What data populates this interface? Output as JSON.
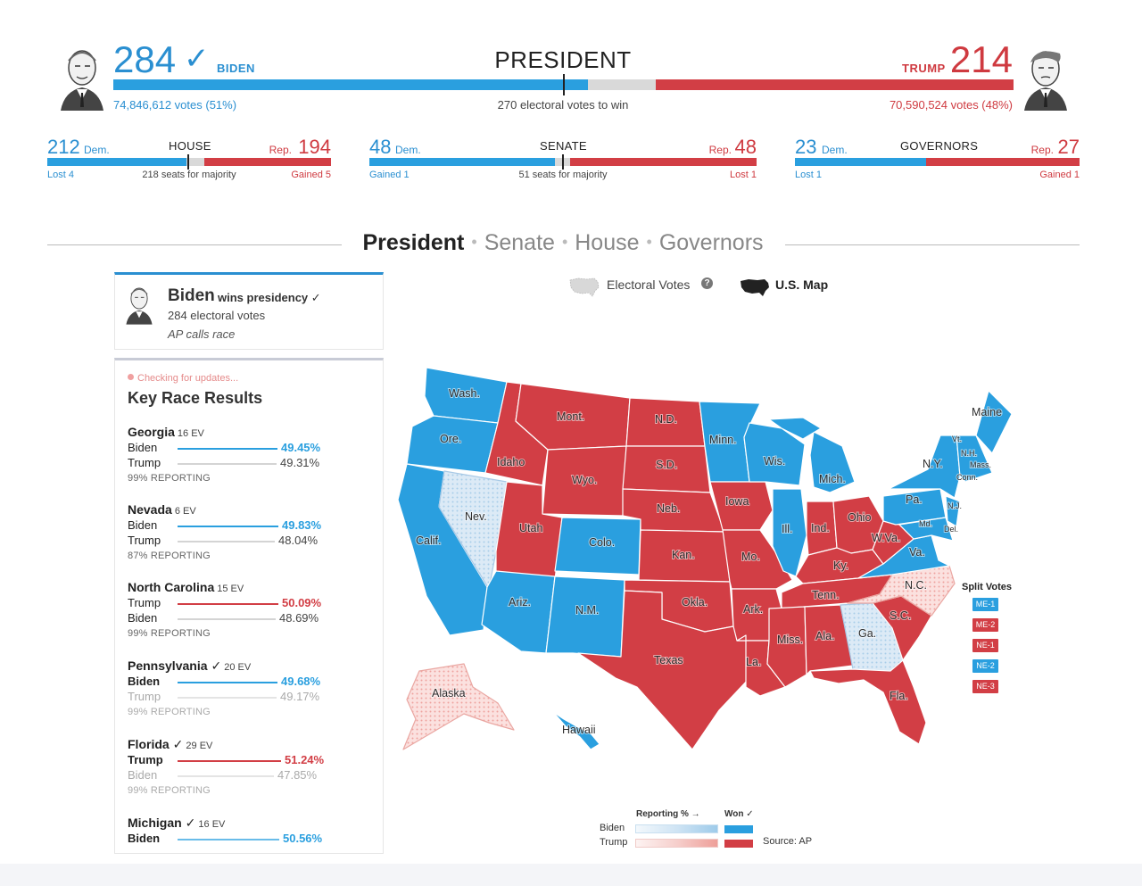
{
  "president": {
    "title": "PRESIDENT",
    "biden": {
      "ev": "284",
      "name": "BIDEN",
      "check": "✓",
      "votes": "74,846,612 votes (51%)"
    },
    "trump": {
      "ev": "214",
      "name": "TRUMP",
      "votes": "70,590,524 votes (48%)"
    },
    "to_win": "270 electoral votes to win"
  },
  "races": [
    {
      "title": "HOUSE",
      "dem": "212",
      "dem_label": "Dem.",
      "rep": "194",
      "rep_label": "Rep.",
      "dem_change": "Lost 4",
      "middle": "218 seats for majority",
      "rep_change": "Gained 5"
    },
    {
      "title": "SENATE",
      "dem": "48",
      "dem_label": "Dem.",
      "rep": "48",
      "rep_label": "Rep.",
      "dem_change": "Gained 1",
      "middle": "51 seats for majority",
      "rep_change": "Lost 1"
    },
    {
      "title": "GOVERNORS",
      "dem": "23",
      "dem_label": "Dem.",
      "rep": "27",
      "rep_label": "Rep.",
      "dem_change": "Lost 1",
      "middle": "",
      "rep_change": "Gained 1"
    }
  ],
  "nav": {
    "items": [
      "President",
      "Senate",
      "House",
      "Governors"
    ],
    "separator": "•",
    "active": "President"
  },
  "winner_card": {
    "name": "Biden",
    "wins": "wins presidency ✓",
    "ev": "284 electoral votes",
    "ap": "AP calls race"
  },
  "key_races": {
    "status": "Checking for updates...",
    "title": "Key Race Results",
    "states": [
      {
        "name": "Georgia",
        "check": "",
        "ev": "16 EV",
        "reporting": "99% REPORTING",
        "rows": [
          {
            "name": "Biden",
            "pct": "49.45%",
            "party": "dem",
            "win": true
          },
          {
            "name": "Trump",
            "pct": "49.31%",
            "party": "rep",
            "win": false
          }
        ]
      },
      {
        "name": "Nevada",
        "check": "",
        "ev": "6 EV",
        "reporting": "87% REPORTING",
        "rows": [
          {
            "name": "Biden",
            "pct": "49.83%",
            "party": "dem",
            "win": true
          },
          {
            "name": "Trump",
            "pct": "48.04%",
            "party": "rep",
            "win": false
          }
        ]
      },
      {
        "name": "North Carolina",
        "check": "",
        "ev": "15 EV",
        "reporting": "99% REPORTING",
        "rows": [
          {
            "name": "Trump",
            "pct": "50.09%",
            "party": "rep",
            "win": true
          },
          {
            "name": "Biden",
            "pct": "48.69%",
            "party": "dem",
            "win": false
          }
        ]
      },
      {
        "name": "Pennsylvania",
        "check": "✓",
        "ev": "20 EV",
        "reporting": "99% REPORTING",
        "rows": [
          {
            "name": "Biden",
            "pct": "49.68%",
            "party": "dem",
            "win": true
          },
          {
            "name": "Trump",
            "pct": "49.17%",
            "party": "rep",
            "win": false
          }
        ]
      },
      {
        "name": "Florida",
        "check": "✓",
        "ev": "29 EV",
        "reporting": "99% REPORTING",
        "rows": [
          {
            "name": "Trump",
            "pct": "51.24%",
            "party": "rep",
            "win": true
          },
          {
            "name": "Biden",
            "pct": "47.85%",
            "party": "dem",
            "win": false
          }
        ]
      },
      {
        "name": "Michigan",
        "check": "✓",
        "ev": "16 EV",
        "reporting": "",
        "rows": [
          {
            "name": "Biden",
            "pct": "50.56%",
            "party": "dem",
            "win": true
          }
        ]
      }
    ]
  },
  "map_toggle": {
    "ev_label": "Electoral Votes",
    "help": "?",
    "us_label": "U.S. Map",
    "ev_icon": "us-map-outline-icon",
    "us_icon": "us-map-filled-icon",
    "help_icon": "help-circle-icon"
  },
  "map": {
    "labels": {
      "wash": "Wash.",
      "ore": "Ore.",
      "calif": "Calif.",
      "nev": "Nev.",
      "idaho": "Idaho",
      "mont": "Mont.",
      "wyo": "Wyo.",
      "utah": "Utah",
      "colo": "Colo.",
      "ariz": "Ariz.",
      "nm": "N.M.",
      "nd": "N.D.",
      "sd": "S.D.",
      "neb": "Neb.",
      "kan": "Kan.",
      "okla": "Okla.",
      "texas": "Texas",
      "minn": "Minn.",
      "iowa": "Iowa",
      "mo": "Mo.",
      "ark": "Ark.",
      "la": "La.",
      "wis": "Wis.",
      "ill": "Ill.",
      "mich": "Mich.",
      "ind": "Ind.",
      "ohio": "Ohio",
      "ky": "Ky.",
      "tenn": "Tenn.",
      "miss": "Miss.",
      "ala": "Ala.",
      "ga": "Ga.",
      "fla": "Fla.",
      "sc": "S.C.",
      "nc": "N.C.",
      "va": "Va.",
      "wva": "W.Va.",
      "pa": "Pa.",
      "ny": "N.Y.",
      "vt": "Vt.",
      "nh": "N.H.",
      "mass": "Mass.",
      "conn": "Conn.",
      "nj": "N.J.",
      "md": "Md.",
      "del": "Del.",
      "maine": "Maine",
      "alaska": "Alaska",
      "hawaii": "Hawaii"
    },
    "colors": {
      "dem": "#2a9fdf",
      "rep": "#d23e45",
      "dem_lead": "#d6e9f7",
      "rep_lead": "#f6c7c4"
    }
  },
  "split_votes": {
    "title": "Split Votes",
    "chips": [
      {
        "label": "ME-1",
        "party": "dem"
      },
      {
        "label": "ME-2",
        "party": "rep"
      },
      {
        "label": "NE-1",
        "party": "rep"
      },
      {
        "label": "NE-2",
        "party": "dem"
      },
      {
        "label": "NE-3",
        "party": "rep"
      }
    ]
  },
  "legend": {
    "reporting": "Reporting % →",
    "won": "Won ✓",
    "biden": "Biden",
    "trump": "Trump",
    "source": "Source: AP"
  }
}
